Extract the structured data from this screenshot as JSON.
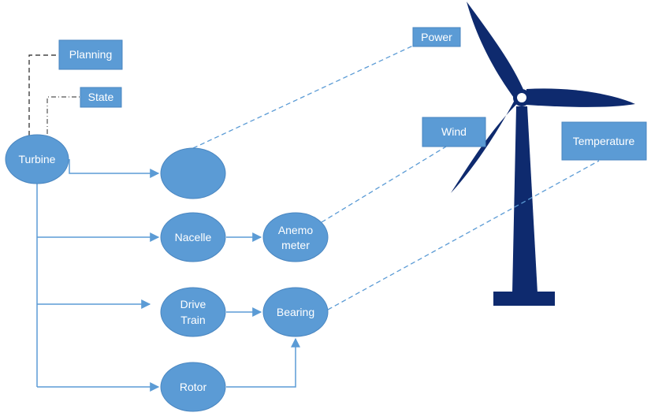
{
  "colors": {
    "node_fill": "#5b9bd5",
    "node_stroke": "#4a86c0",
    "connector": "#5b9bd5",
    "dashed_link": "#5b9bd5",
    "dark_link": "#222222",
    "turbine": "#0e2a6e",
    "text": "#ffffff"
  },
  "nodes": {
    "turbine": "Turbine",
    "unlabeled": "",
    "nacelle": "Nacelle",
    "anemometer_line1": "Anemo",
    "anemometer_line2": "meter",
    "drive_train_line1": "Drive",
    "drive_train_line2": "Train",
    "bearing": "Bearing",
    "rotor": "Rotor"
  },
  "boxes": {
    "planning": "Planning",
    "state": "State",
    "power": "Power",
    "wind": "Wind",
    "temperature": "Temperature"
  },
  "icon": "wind-turbine-icon"
}
